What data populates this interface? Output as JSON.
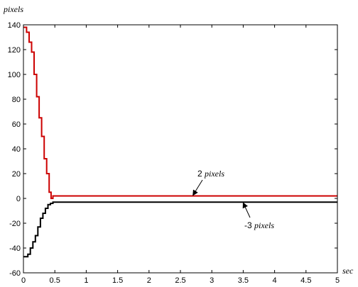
{
  "chart_data": {
    "type": "line",
    "xlabel": "sec",
    "ylabel": "pixels",
    "xlim": [
      0,
      5
    ],
    "ylim": [
      -60,
      140
    ],
    "xticks": [
      0,
      0.5,
      1,
      1.5,
      2,
      2.5,
      3,
      3.5,
      4,
      4.5,
      5
    ],
    "xtick_labels": [
      "0",
      "0.5",
      "1",
      "1.5",
      "2",
      "2.5",
      "3",
      "3.5",
      "4",
      "4.5",
      "5"
    ],
    "yticks": [
      -60,
      -40,
      -20,
      0,
      20,
      40,
      60,
      80,
      100,
      120,
      140
    ],
    "ytick_labels": [
      "-60",
      "-40",
      "-20",
      "0",
      "20",
      "40",
      "60",
      "80",
      "100",
      "120",
      "140"
    ],
    "grid": false,
    "series": [
      {
        "color": "#cc0000",
        "x": [
          0,
          0.05,
          0.05,
          0.09,
          0.09,
          0.13,
          0.13,
          0.17,
          0.17,
          0.21,
          0.21,
          0.25,
          0.25,
          0.29,
          0.29,
          0.33,
          0.33,
          0.37,
          0.37,
          0.41,
          0.41,
          0.44,
          0.44,
          0.47,
          0.47,
          5
        ],
        "y": [
          138,
          138,
          134,
          134,
          126,
          126,
          118,
          118,
          100,
          100,
          82,
          82,
          65,
          65,
          50,
          50,
          32,
          32,
          20,
          20,
          5,
          5,
          0,
          0,
          2,
          2
        ]
      },
      {
        "color": "#000000",
        "x": [
          0,
          0.07,
          0.07,
          0.11,
          0.11,
          0.15,
          0.15,
          0.19,
          0.19,
          0.23,
          0.23,
          0.27,
          0.27,
          0.31,
          0.31,
          0.35,
          0.35,
          0.39,
          0.39,
          0.43,
          0.43,
          0.47,
          0.47,
          5
        ],
        "y": [
          -47,
          -47,
          -45,
          -45,
          -40,
          -40,
          -35,
          -35,
          -30,
          -30,
          -23,
          -23,
          -16,
          -16,
          -12,
          -12,
          -8,
          -8,
          -5,
          -5,
          -4,
          -4,
          -3,
          -3
        ]
      }
    ],
    "annotations": [
      {
        "number": "2",
        "unit": "pixels",
        "arrow_to": [
          2.7,
          2
        ]
      },
      {
        "number": "-3",
        "unit": "pixels",
        "arrow_to": [
          3.5,
          -3
        ]
      }
    ]
  }
}
